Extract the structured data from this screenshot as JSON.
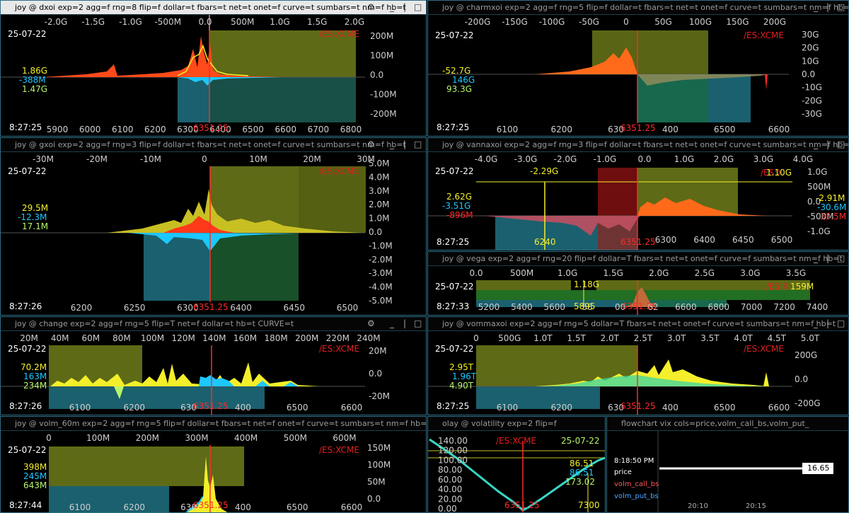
{
  "panels": {
    "dxoi": {
      "title": "joy @ dxoi exp=2 agg=f rng=8 flip=f dollar=t fbars=t net=t onet=f curve=t sumbars=t nm=f  hb=t",
      "date": "25-07-22",
      "time": "8:27:25",
      "symbol": "/ES:XCME",
      "price": "6351.25",
      "stats": [
        "1.86G",
        "-388M",
        "1.47G"
      ],
      "top_ticks": [
        "-2.0G",
        "-1.5G",
        "-1.0G",
        "-500M",
        "0.0",
        "500M",
        "1.0G",
        "1.5G",
        "2.0G"
      ],
      "right_ticks": [
        "200M",
        "100M",
        "0.0",
        "-100M",
        "-200M"
      ],
      "bottom_ticks": [
        "5900",
        "6000",
        "6100",
        "6200",
        "6300",
        "6400",
        "6500",
        "6600",
        "6700",
        "6800"
      ]
    },
    "charmxoi": {
      "title": "joy @ charmxoi exp=2 agg=f rng=5 flip=f dollar=t fbars=t net=t onet=f curve=t sumbars=t nm=f hb=t",
      "date": "25-07-22",
      "time": "8:27:25",
      "symbol": "/ES:XCME",
      "price": "6351.25",
      "stats": [
        "-52.7G",
        "146G",
        "93.3G"
      ],
      "top_ticks": [
        "-200G",
        "-150G",
        "-100G",
        "-50G",
        "0",
        "50G",
        "100G",
        "150G",
        "200G"
      ],
      "right_ticks": [
        "30G",
        "20G",
        "10G",
        "0.0",
        "-10G",
        "-20G",
        "-30G"
      ],
      "bottom_ticks": [
        "6100",
        "6200",
        "630",
        "400",
        "6500",
        "6600"
      ]
    },
    "gxoi": {
      "title": "joy @ gxoi exp=2 agg=f rng=3 flip=f dollar=t fbars=t net=t onet=f curve=t sumbars=t nm=f  hb=t",
      "date": "25-07-22",
      "time": "8:27:26",
      "symbol": "/ES:XCME",
      "price": "6351.25",
      "stats": [
        "29.5M",
        "-12.3M",
        "17.1M"
      ],
      "top_ticks": [
        "-30M",
        "-20M",
        "-10M",
        "0",
        "10M",
        "20M",
        "30M"
      ],
      "right_ticks": [
        "5.0M",
        "4.0M",
        "3.0M",
        "2.0M",
        "1.0M",
        "0.0",
        "-1.0M",
        "-2.0M",
        "-3.0M",
        "-4.0M",
        "-5.0M"
      ],
      "bottom_ticks": [
        "6200",
        "6250",
        "6300",
        "6400",
        "6450",
        "6500"
      ]
    },
    "vannaxoi": {
      "title": "joy @ vannaxoi exp=2 agg=f rng=3 flip=f dollar=t fbars=t net=t onet=f curve=t sumbars=t nm=f hb=t",
      "date": "25-07-22",
      "time": "8:27:25",
      "symbol": "/ES:X",
      "price": "6351.25",
      "stats": [
        "2.62G",
        "-3.51G",
        "-896M"
      ],
      "right_stats": [
        "-2.91M",
        "-30.6M",
        "33.5M"
      ],
      "marker_top": "-2.29G",
      "marker_bottom": "6240",
      "marker_right": "1.10G",
      "top_ticks": [
        "-4.0G",
        "-3.0G",
        "-2.0G",
        "-1.0G",
        "0.0",
        "1.0G",
        "2.0G",
        "3.0G",
        "4.0G"
      ],
      "right_ticks": [
        "1.0G",
        "500M",
        "0.0",
        "-500M",
        "-1.0G"
      ],
      "bottom_ticks": [
        "6300",
        "6400",
        "6450",
        "6500"
      ]
    },
    "vega": {
      "title": "joy @ vega exp=2 agg=f rng=20 flip=f dollar=T fbars=t net=t onet=f curve=f sumbars=t nm=f hb=t",
      "date": "25-07-22",
      "time": "8:27:33",
      "symbol": "/ES:X",
      "price": "6351.25",
      "marker_top": "1.18G",
      "marker_bottom": "5895",
      "marker_right": "159M",
      "top_ticks": [
        "0.0",
        "500M",
        "1.0G",
        "1.5G",
        "2.0G",
        "2.5G",
        "3.0G",
        "3.5G"
      ],
      "bottom_ticks": [
        "5200",
        "5400",
        "5600",
        "58",
        "00",
        "62",
        "6600",
        "6800",
        "7000",
        "7200",
        "7400"
      ]
    },
    "change": {
      "title": "joy @ change exp=2 agg=f rng=5 flip=T net=f dollar=t hb=t CURVE=t",
      "date": "25-07-22",
      "time": "8:27:26",
      "symbol": "/ES:XCME",
      "price": "6351.25",
      "stats": [
        "70.2M",
        "163M",
        "234M"
      ],
      "top_ticks": [
        "20M",
        "40M",
        "60M",
        "80M",
        "100M",
        "120M",
        "140M",
        "160M",
        "180M",
        "200M",
        "220M",
        "240M"
      ],
      "right_ticks": [
        "20M",
        "0.0",
        "-20M"
      ],
      "bottom_ticks": [
        "6100",
        "6200",
        "630",
        "400",
        "6500",
        "6600"
      ]
    },
    "vommaxoi": {
      "title": "joy @ vommaxoi exp=2 agg=f rng=5 dollar=T fbars=t net=t onet=f curve=t sumbars=t nm=f hb=t",
      "date": "25-07-22",
      "time": "8:27:25",
      "symbol": "/ES:XCME",
      "price": "6351.25",
      "stats": [
        "2.95T",
        "1.96T",
        "4.90T"
      ],
      "top_ticks": [
        "0",
        "500G",
        "1.0T",
        "1.5T",
        "2.0T",
        "2.5T",
        "3.0T",
        "3.5T",
        "4.0T",
        "4.5T",
        "5.0T"
      ],
      "right_ticks": [
        "200G",
        "0.0",
        "-200G"
      ],
      "bottom_ticks": [
        "6100",
        "6200",
        "630",
        "400",
        "6500",
        "6600"
      ]
    },
    "volm": {
      "title": "joy @ volm_60m exp=2 agg=f rng=5 flip=f dollar=t fbars=t net=f onet=f curve=t sumbars=t nm=f hb=t",
      "date": "25-07-22",
      "time": "8:27:44",
      "symbol": "/ES:XCME",
      "price": "6351.25",
      "stats": [
        "398M",
        "245M",
        "643M"
      ],
      "top_ticks": [
        "0",
        "100M",
        "200M",
        "300M",
        "400M",
        "500M",
        "600M"
      ],
      "right_ticks": [
        "150M",
        "100M",
        "50M",
        "0.0"
      ],
      "bottom_ticks": [
        "6100",
        "6200",
        "630",
        "400",
        "6500",
        "6600"
      ]
    },
    "volatility": {
      "title": "olay @ volatility exp=2 flip=f",
      "date": "25-07-22",
      "symbol": "/ES:XCME",
      "price": "6351.25",
      "stats": [
        "86.51",
        "86.51",
        "173.02"
      ],
      "marker_bottom": "7300",
      "left_ticks": [
        "140.00",
        "120.00",
        "100.00",
        "80.00",
        "60.00",
        "40.00",
        "20.00",
        "0.00"
      ],
      "bottom_ticks": [
        "600",
        "7000"
      ]
    },
    "flowchart": {
      "title": "flowchart vix cols=price,volm_call_bs,volm_put_",
      "time": "8:18:50 PM",
      "rows": [
        "price",
        "volm_call_bs",
        "volm_put_bs"
      ],
      "value": "16.65",
      "x_ticks": [
        "20:10",
        "20:15"
      ]
    }
  },
  "colors": {
    "accent_border": "#2e6f86",
    "yellow": "#f4ef2a",
    "cyan": "#1cc8ff",
    "red": "#ff2a2a",
    "olive": "#6f7d1a",
    "teal": "#1e6a7a"
  }
}
